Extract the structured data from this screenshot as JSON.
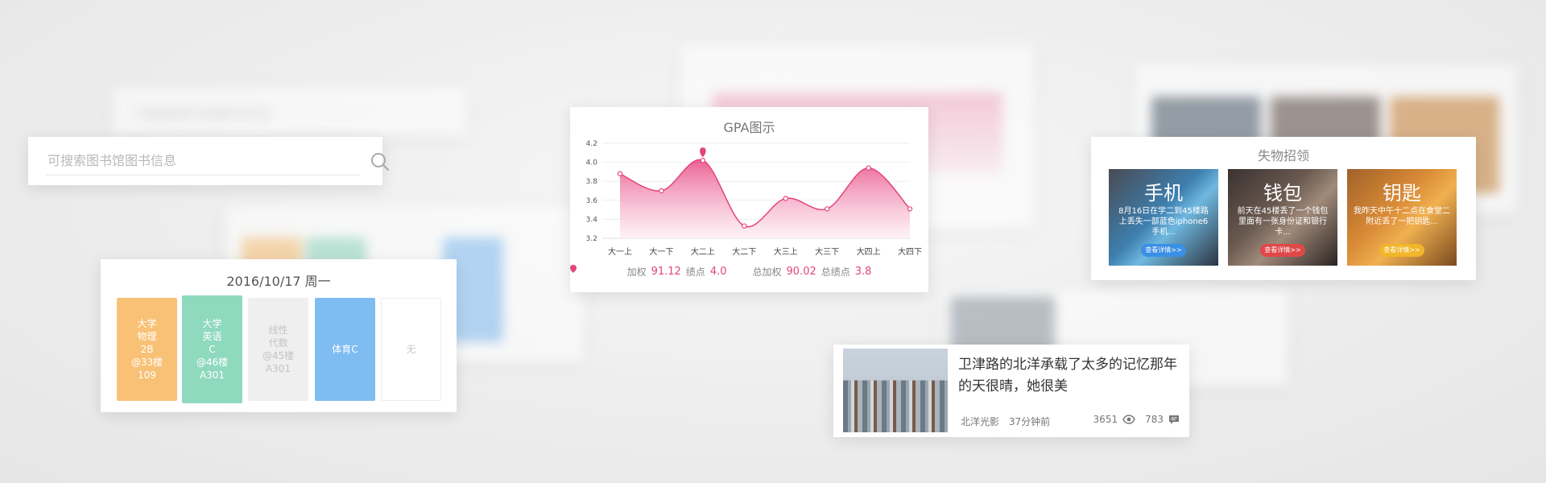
{
  "search": {
    "placeholder": "可搜索图书馆图书信息"
  },
  "schedule": {
    "date": "2016/10/17 周一",
    "courses": [
      {
        "text": "大学\n物理\n2B\n@33楼\n109"
      },
      {
        "text": "大学\n英语\nC\n@46楼\nA301"
      },
      {
        "text": "线性\n代数\n@45楼\nA301"
      },
      {
        "text": "体育C"
      },
      {
        "text": "无"
      }
    ]
  },
  "gpa": {
    "title": "GPA图示",
    "legend": [
      {
        "label": "加权",
        "value": "91.12",
        "label2": "绩点",
        "value2": "4.0"
      },
      {
        "label": "总加权",
        "value": "90.02",
        "label2": "总绩点",
        "value2": "3.8"
      }
    ]
  },
  "chart_data": {
    "type": "area",
    "title": "GPA图示",
    "categories": [
      "大一上",
      "大一下",
      "大二上",
      "大二下",
      "大三上",
      "大三下",
      "大四上",
      "大四下"
    ],
    "series": [
      {
        "values": [
          3.88,
          3.7,
          4.02,
          3.33,
          3.62,
          3.51,
          3.94,
          3.51
        ]
      }
    ],
    "yticks": [
      "4.2",
      "4.0",
      "3.8",
      "3.6",
      "3.4",
      "3.2"
    ],
    "ylim": [
      3.2,
      4.2
    ],
    "highlight_index": 2,
    "accent_color": "#e2457c",
    "grid": true
  },
  "lost": {
    "title": "失物招领",
    "items": [
      {
        "name": "手机",
        "desc": "8月16日在学二到45楼路上丢失一部蓝色iphone6手机...",
        "button": "查看详情>>"
      },
      {
        "name": "钱包",
        "desc": "前天在45楼丢了一个钱包里面有一张身份证和银行卡...",
        "button": "查看详情>>"
      },
      {
        "name": "钥匙",
        "desc": "我昨天中午十二点在食堂二附近丢了一把钥匙...",
        "button": "查看详情>>"
      }
    ]
  },
  "news": {
    "headline": "卫津路的北洋承载了太多的记忆那年的天很晴，她很美",
    "source": "北洋光影",
    "time": "37分钟前",
    "views": "3651",
    "comments": "783"
  }
}
